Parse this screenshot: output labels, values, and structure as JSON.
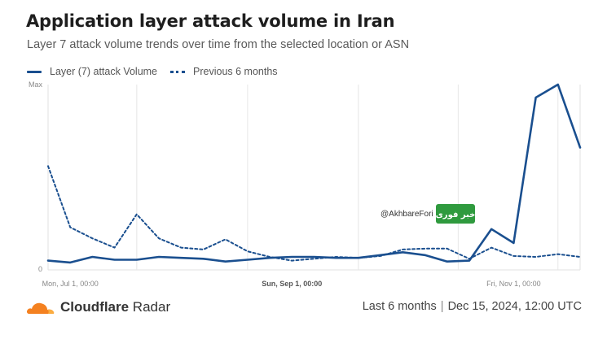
{
  "title": "Application layer attack volume in Iran",
  "subtitle": "Layer 7 attack volume trends over time from the selected location or ASN",
  "legend": {
    "current": "Layer (7) attack Volume",
    "previous": "Previous 6 months"
  },
  "footer": {
    "brand": "Cloudflare",
    "product": "Radar",
    "range": "Last 6 months",
    "separator": "|",
    "timestamp": "Dec 15, 2024, 12:00 UTC"
  },
  "watermark": {
    "handle": "@AkhbareFori",
    "logo_text": "خبر فوری"
  },
  "colors": {
    "series": "#1a4f8f",
    "cloudflare_orange": "#f48120",
    "watermark_green": "#2f9a3e"
  },
  "chart_data": {
    "type": "line",
    "y_tick_labels": [
      "Max",
      "0"
    ],
    "ylim": [
      0,
      100
    ],
    "x_tick_labels": [
      {
        "label": "Mon, Jul 1, 00:00",
        "bold": false
      },
      {
        "label": "Sun, Sep 1, 00:00",
        "bold": true
      },
      {
        "label": "Fri, Nov 1, 00:00",
        "bold": false
      }
    ],
    "grid": true,
    "legend_position": "top-left",
    "series": [
      {
        "name": "Layer (7) attack Volume",
        "style": "solid",
        "values": [
          5,
          4,
          7,
          5.5,
          5.5,
          7,
          6.5,
          6,
          4.5,
          5.5,
          6.5,
          7,
          7,
          6.5,
          6.5,
          8,
          9.5,
          8,
          4.5,
          5,
          22,
          14.5,
          93,
          100,
          66
        ]
      },
      {
        "name": "Previous 6 months",
        "style": "dotted",
        "values": [
          56,
          23,
          17,
          12,
          30,
          17,
          12,
          11,
          16.5,
          10,
          7,
          5,
          6,
          7,
          6.5,
          7.5,
          11,
          11.5,
          11.5,
          6,
          12,
          7.5,
          7,
          8.5,
          7
        ]
      }
    ]
  }
}
